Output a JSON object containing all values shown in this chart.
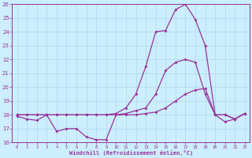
{
  "xlabel": "Windchill (Refroidissement éolien,°C)",
  "background_color": "#cceeff",
  "grid_color": "#b0d8e8",
  "line_color": "#993399",
  "xlim": [
    -0.5,
    23.5
  ],
  "ylim": [
    16,
    26
  ],
  "yticks": [
    16,
    17,
    18,
    19,
    20,
    21,
    22,
    23,
    24,
    25,
    26
  ],
  "xticks": [
    0,
    1,
    2,
    3,
    4,
    5,
    6,
    7,
    8,
    9,
    10,
    11,
    12,
    13,
    14,
    15,
    16,
    17,
    18,
    19,
    20,
    21,
    22,
    23
  ],
  "line1_x": [
    0,
    1,
    2,
    3,
    4,
    5,
    6,
    7,
    8,
    9,
    10,
    11,
    12,
    13,
    14,
    15,
    16,
    17,
    18,
    19,
    20,
    21,
    22,
    23
  ],
  "line1_y": [
    17.9,
    17.7,
    17.6,
    18.0,
    16.8,
    17.0,
    17.0,
    16.4,
    16.2,
    16.2,
    18.0,
    18.1,
    18.3,
    18.5,
    19.5,
    21.2,
    21.8,
    22.0,
    21.8,
    19.5,
    18.0,
    17.5,
    17.7,
    18.1
  ],
  "line2_x": [
    0,
    1,
    2,
    3,
    4,
    5,
    6,
    7,
    8,
    9,
    10,
    11,
    12,
    13,
    14,
    15,
    16,
    17,
    18,
    19,
    20,
    21,
    22,
    23
  ],
  "line2_y": [
    18.0,
    18.0,
    18.0,
    18.0,
    18.0,
    18.0,
    18.0,
    18.0,
    18.0,
    18.0,
    18.0,
    18.0,
    18.0,
    18.1,
    18.2,
    18.5,
    19.0,
    19.5,
    19.8,
    19.9,
    18.0,
    18.0,
    17.7,
    18.1
  ],
  "line3_x": [
    0,
    1,
    2,
    3,
    4,
    5,
    6,
    7,
    8,
    9,
    10,
    11,
    12,
    13,
    14,
    15,
    16,
    17,
    18,
    19,
    20,
    21,
    22,
    23
  ],
  "line3_y": [
    18.0,
    18.0,
    18.0,
    18.0,
    18.0,
    18.0,
    18.0,
    18.0,
    18.0,
    18.0,
    18.1,
    18.5,
    19.5,
    21.5,
    24.0,
    24.1,
    25.6,
    26.0,
    24.9,
    23.0,
    18.0,
    18.0,
    17.7,
    18.1
  ]
}
